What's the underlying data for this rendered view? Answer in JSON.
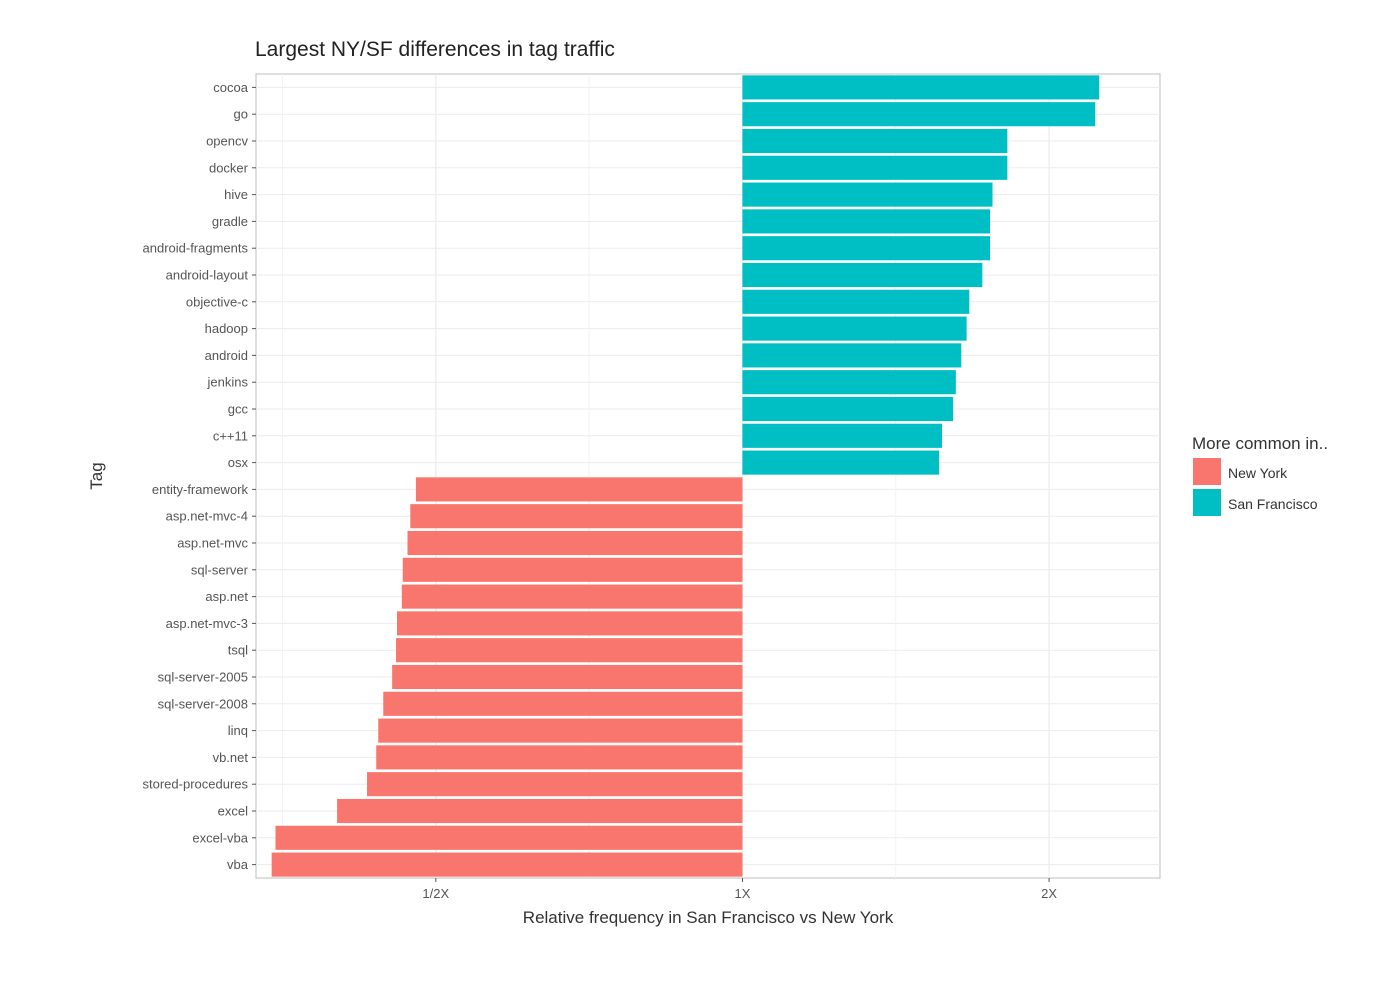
{
  "chart_data": {
    "type": "bar",
    "orientation": "horizontal",
    "title": "Largest NY/SF differences in tag traffic",
    "xlabel": "Relative frequency in San Francisco vs New York",
    "ylabel": "Tag",
    "x_scale": "log2",
    "x_ticks": [
      0.5,
      1,
      2
    ],
    "x_tick_labels": [
      "1/2X",
      "1X",
      "2X"
    ],
    "xlim": [
      0.333,
      2.57
    ],
    "grid": true,
    "legend": {
      "title": "More common in..",
      "position": "right",
      "entries": [
        {
          "label": "New York",
          "color": "#F8766D"
        },
        {
          "label": "San Francisco",
          "color": "#00BFC4"
        }
      ]
    },
    "categories": [
      "cocoa",
      "go",
      "opencv",
      "docker",
      "hive",
      "gradle",
      "android-fragments",
      "android-layout",
      "objective-c",
      "hadoop",
      "android",
      "jenkins",
      "gcc",
      "c++11",
      "osx",
      "entity-framework",
      "asp.net-mvc-4",
      "asp.net-mvc",
      "sql-server",
      "asp.net",
      "asp.net-mvc-3",
      "tsql",
      "sql-server-2005",
      "sql-server-2008",
      "linq",
      "vb.net",
      "stored-procedures",
      "excel",
      "excel-vba",
      "vba"
    ],
    "values": [
      2.24,
      2.22,
      1.82,
      1.82,
      1.76,
      1.75,
      1.75,
      1.72,
      1.67,
      1.66,
      1.64,
      1.62,
      1.61,
      1.57,
      1.56,
      0.478,
      0.472,
      0.469,
      0.464,
      0.463,
      0.458,
      0.457,
      0.453,
      0.444,
      0.439,
      0.437,
      0.428,
      0.4,
      0.348,
      0.345
    ],
    "groups": [
      "San Francisco",
      "San Francisco",
      "San Francisco",
      "San Francisco",
      "San Francisco",
      "San Francisco",
      "San Francisco",
      "San Francisco",
      "San Francisco",
      "San Francisco",
      "San Francisco",
      "San Francisco",
      "San Francisco",
      "San Francisco",
      "San Francisco",
      "New York",
      "New York",
      "New York",
      "New York",
      "New York",
      "New York",
      "New York",
      "New York",
      "New York",
      "New York",
      "New York",
      "New York",
      "New York",
      "New York",
      "New York"
    ]
  }
}
